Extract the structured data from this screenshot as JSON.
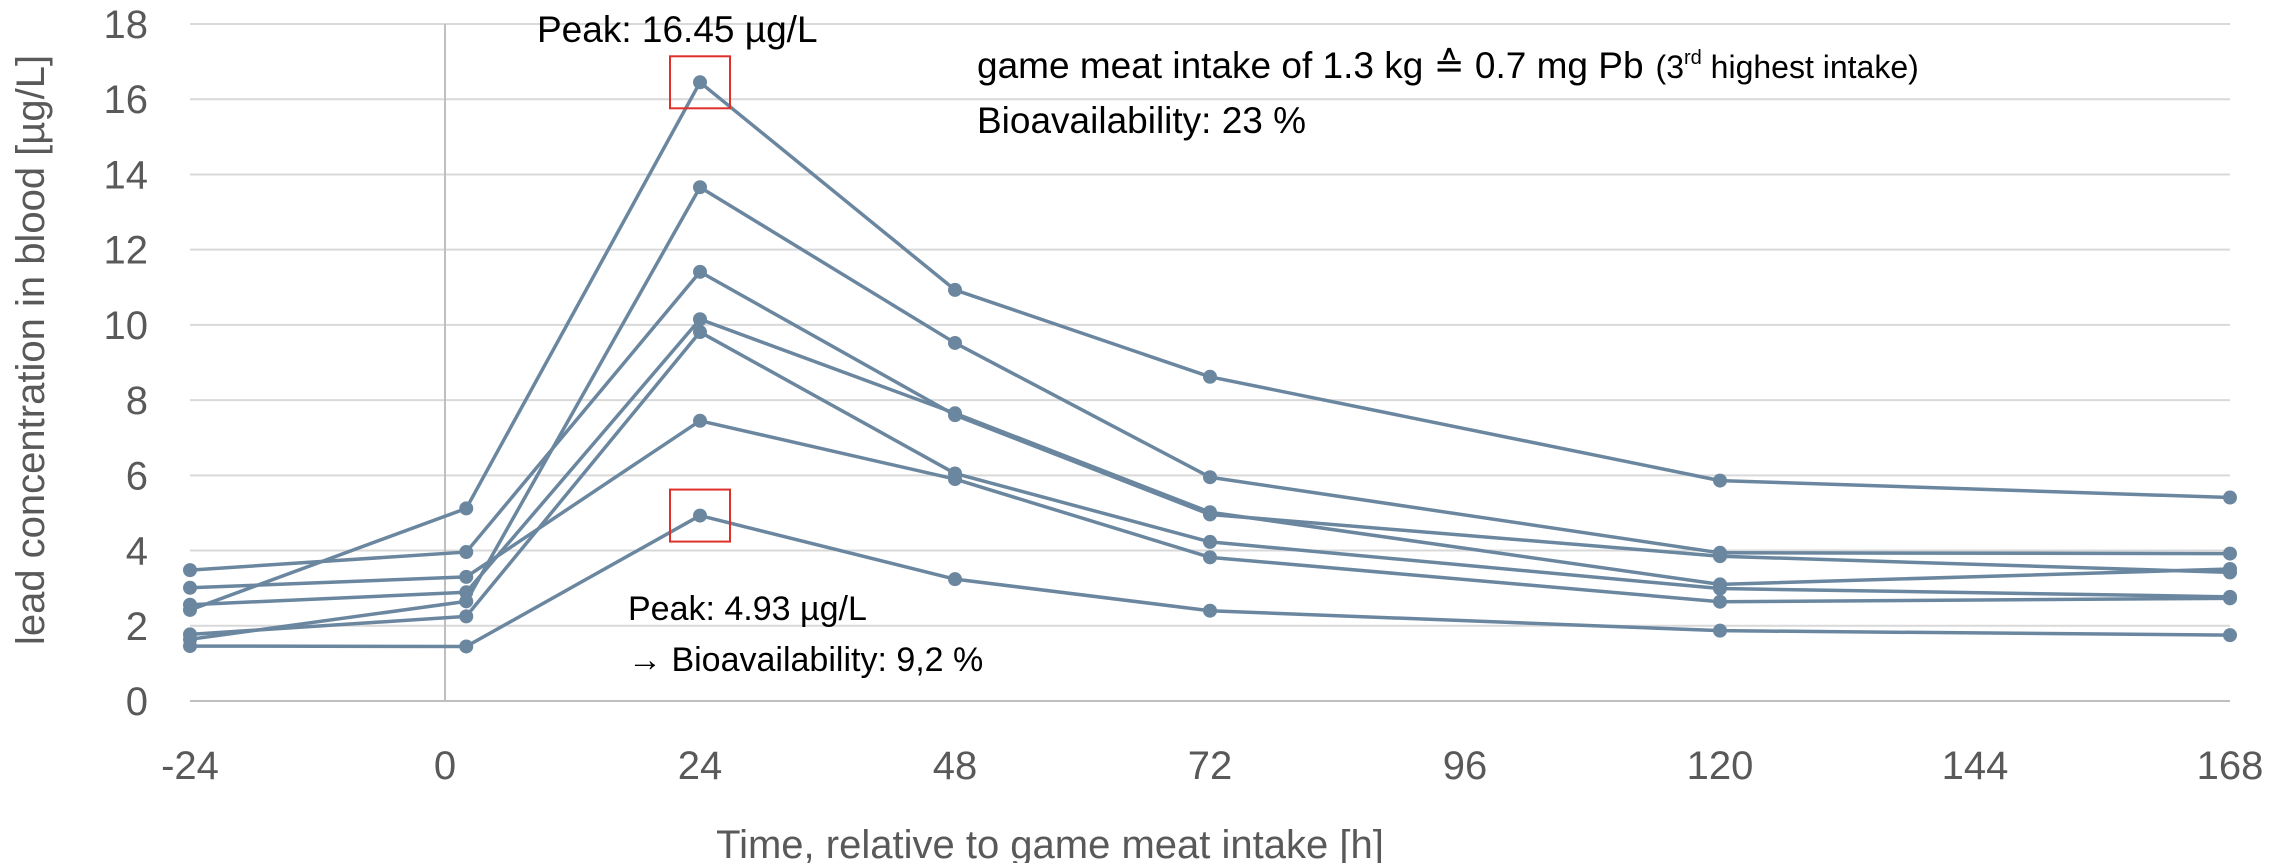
{
  "chart_data": {
    "type": "line",
    "xlabel": "Time, relative to game meat intake [h]",
    "ylabel": "lead concentration in blood [µg/L]",
    "x_ticks": [
      "-24",
      "0",
      "24",
      "48",
      "72",
      "96",
      "120",
      "144",
      "168"
    ],
    "y_ticks": [
      "0",
      "2",
      "4",
      "6",
      "8",
      "10",
      "12",
      "14",
      "16",
      "18"
    ],
    "xlim": [
      -24,
      168
    ],
    "ylim": [
      0,
      18
    ],
    "grid": "horizontal",
    "series_color": "#6B87A0",
    "series": [
      {
        "x": [
          -24,
          2,
          24,
          48,
          72,
          120,
          168
        ],
        "y": [
          2.42,
          5.12,
          16.45,
          10.93,
          8.62,
          5.86,
          5.41
        ]
      },
      {
        "x": [
          -24,
          2,
          24,
          48,
          72,
          120,
          168
        ],
        "y": [
          1.64,
          2.65,
          13.66,
          9.52,
          5.95,
          3.94,
          3.92
        ]
      },
      {
        "x": [
          -24,
          2,
          24,
          48,
          72,
          120,
          168
        ],
        "y": [
          3.48,
          3.96,
          11.41,
          7.6,
          4.96,
          3.85,
          3.42
        ]
      },
      {
        "x": [
          -24,
          2,
          24,
          48,
          72,
          120,
          168
        ],
        "y": [
          2.56,
          2.89,
          10.15,
          7.65,
          5.02,
          3.1,
          3.51
        ]
      },
      {
        "x": [
          -24,
          2,
          24,
          48,
          72,
          120,
          168
        ],
        "y": [
          1.77,
          2.25,
          9.81,
          6.05,
          4.23,
          2.99,
          2.77
        ]
      },
      {
        "x": [
          -24,
          2,
          24,
          48,
          72,
          120,
          168
        ],
        "y": [
          3.01,
          3.3,
          7.45,
          5.9,
          3.82,
          2.64,
          2.73
        ]
      },
      {
        "x": [
          -24,
          2,
          24,
          48,
          72,
          120,
          168
        ],
        "y": [
          1.46,
          1.45,
          4.93,
          3.24,
          2.4,
          1.87,
          1.75
        ]
      }
    ],
    "annotations": {
      "peak_high": "Peak: 16.45 µg/L",
      "intake_line_main": "game meat intake of 1.3 kg ≙ 0.7 mg Pb",
      "intake_note_prefix": "(3",
      "intake_note_sup": "rd",
      "intake_note_suffix": " highest intake)",
      "bioavailability_high": "Bioavailability:  23 %",
      "peak_low": "Peak: 4.93 µg/L",
      "arrow": "→",
      "bioavailability_low": " Bioavailability: 9,2 %"
    },
    "highlight_color": "#E0302A"
  }
}
